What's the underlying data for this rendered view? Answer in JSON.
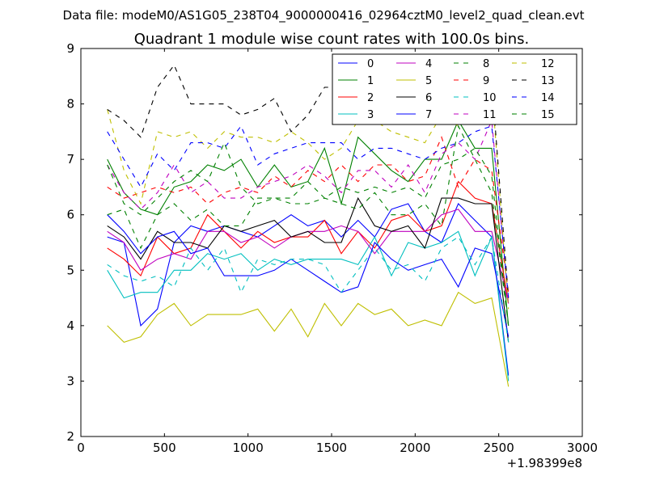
{
  "header": {
    "data_file": "Data file: modeM0/AS1G05_238T04_9000000416_02964cztM0_level2_quad_clean.evt"
  },
  "chart_data": {
    "type": "line",
    "title": "Quadrant 1 module wise count rates with 100.0s bins.",
    "xlabel": "",
    "ylabel": "",
    "x_offset_label": "+1.98399e8",
    "xlim": [
      0,
      3000
    ],
    "ylim": [
      2,
      9
    ],
    "xticks": [
      0,
      500,
      1000,
      1500,
      2000,
      2500,
      3000
    ],
    "yticks": [
      2,
      3,
      4,
      5,
      6,
      7,
      8,
      9
    ],
    "grid": false,
    "legend_position": "top-right",
    "x": [
      158,
      258,
      358,
      458,
      558,
      658,
      758,
      858,
      958,
      1058,
      1158,
      1258,
      1358,
      1458,
      1558,
      1658,
      1758,
      1858,
      1958,
      2058,
      2158,
      2258,
      2358,
      2458,
      2558
    ],
    "series": [
      {
        "name": "0",
        "color": "#0000ff",
        "style": "solid",
        "values": [
          5.6,
          5.5,
          4.0,
          4.3,
          5.5,
          5.8,
          5.7,
          5.8,
          5.7,
          5.6,
          5.8,
          6.0,
          5.8,
          5.9,
          5.6,
          5.9,
          5.6,
          6.1,
          6.2,
          5.7,
          5.5,
          6.2,
          5.9,
          5.6,
          3.1
        ]
      },
      {
        "name": "1",
        "color": "#008000",
        "style": "solid",
        "values": [
          7.0,
          6.4,
          6.1,
          6.0,
          6.5,
          6.6,
          6.9,
          6.8,
          7.0,
          6.5,
          6.9,
          6.5,
          6.6,
          7.2,
          6.2,
          7.4,
          7.1,
          6.8,
          6.6,
          7.0,
          7.0,
          7.7,
          7.2,
          7.2,
          4.0
        ]
      },
      {
        "name": "2",
        "color": "#ff0000",
        "style": "solid",
        "values": [
          5.4,
          5.2,
          4.9,
          5.6,
          5.3,
          5.4,
          6.0,
          5.7,
          5.4,
          5.7,
          5.5,
          5.6,
          5.6,
          5.9,
          5.3,
          5.7,
          5.4,
          5.9,
          6.0,
          5.7,
          5.8,
          6.6,
          6.3,
          6.2,
          4.4
        ]
      },
      {
        "name": "3",
        "color": "#00bfbf",
        "style": "solid",
        "values": [
          5.0,
          4.5,
          4.6,
          4.6,
          5.0,
          5.0,
          5.3,
          5.2,
          5.3,
          5.0,
          5.2,
          5.1,
          5.2,
          5.2,
          5.2,
          5.1,
          5.6,
          4.9,
          5.5,
          5.4,
          5.5,
          5.7,
          4.9,
          5.6,
          3.0
        ]
      },
      {
        "name": "4",
        "color": "#bf00bf",
        "style": "solid",
        "values": [
          5.7,
          5.5,
          5.0,
          5.2,
          5.3,
          5.2,
          5.7,
          5.7,
          5.5,
          5.6,
          5.4,
          5.6,
          5.7,
          5.7,
          5.8,
          5.7,
          5.3,
          5.7,
          5.7,
          5.7,
          6.0,
          6.1,
          5.7,
          5.7,
          4.4
        ]
      },
      {
        "name": "5",
        "color": "#bfbf00",
        "style": "solid",
        "values": [
          4.0,
          3.7,
          3.8,
          4.2,
          4.4,
          4.0,
          4.2,
          4.2,
          4.2,
          4.3,
          3.9,
          4.3,
          3.8,
          4.4,
          4.0,
          4.4,
          4.2,
          4.3,
          4.0,
          4.1,
          4.0,
          4.6,
          4.4,
          4.5,
          2.9
        ]
      },
      {
        "name": "6",
        "color": "#000000",
        "style": "solid",
        "values": [
          5.8,
          5.6,
          5.2,
          5.7,
          5.5,
          5.5,
          5.4,
          5.8,
          5.7,
          5.8,
          5.9,
          5.6,
          5.7,
          5.5,
          5.5,
          6.3,
          5.8,
          5.7,
          5.8,
          5.4,
          6.3,
          6.3,
          6.2,
          6.2,
          3.7
        ]
      },
      {
        "name": "7",
        "color": "#0000ff",
        "style": "solid",
        "values": [
          6.0,
          5.7,
          5.3,
          5.6,
          5.7,
          5.3,
          5.4,
          4.9,
          4.9,
          4.9,
          5.0,
          5.2,
          5.0,
          4.8,
          4.6,
          4.7,
          5.5,
          5.2,
          5.0,
          5.1,
          5.2,
          4.7,
          5.4,
          5.3,
          3.8
        ]
      },
      {
        "name": "8",
        "color": "#008000",
        "style": "dashed",
        "values": [
          6.0,
          6.1,
          5.4,
          6.0,
          6.2,
          5.9,
          6.1,
          5.8,
          5.8,
          6.3,
          6.3,
          6.2,
          6.2,
          6.3,
          6.2,
          6.1,
          6.4,
          6.0,
          6.0,
          6.2,
          5.8,
          7.6,
          7.0,
          6.4,
          4.0
        ]
      },
      {
        "name": "9",
        "color": "#ff0000",
        "style": "dashed",
        "values": [
          6.5,
          6.3,
          6.4,
          6.5,
          6.4,
          6.5,
          6.2,
          6.4,
          6.5,
          6.4,
          6.7,
          6.5,
          6.8,
          6.6,
          6.9,
          6.6,
          6.9,
          6.9,
          6.6,
          6.7,
          7.4,
          6.5,
          7.0,
          6.8,
          4.6
        ]
      },
      {
        "name": "10",
        "color": "#00bfbf",
        "style": "dashed",
        "values": [
          5.1,
          4.9,
          4.8,
          4.9,
          4.7,
          5.4,
          5.0,
          5.4,
          4.6,
          5.2,
          5.1,
          5.2,
          5.2,
          5.1,
          4.6,
          5.0,
          5.4,
          5.0,
          5.1,
          4.8,
          5.4,
          5.6,
          5.1,
          5.6,
          3.7
        ]
      },
      {
        "name": "11",
        "color": "#bf00bf",
        "style": "dashed",
        "values": [
          6.9,
          6.4,
          6.1,
          6.4,
          6.9,
          6.4,
          6.6,
          6.3,
          6.3,
          6.5,
          6.6,
          6.7,
          6.9,
          6.7,
          6.4,
          6.8,
          6.8,
          6.5,
          6.9,
          6.4,
          7.1,
          7.3,
          7.0,
          7.7,
          4.4
        ]
      },
      {
        "name": "12",
        "color": "#bfbf00",
        "style": "dashed",
        "values": [
          7.9,
          6.8,
          6.2,
          7.5,
          7.4,
          7.5,
          7.2,
          7.5,
          7.4,
          7.4,
          7.3,
          7.5,
          7.3,
          7.0,
          7.2,
          7.7,
          7.7,
          7.5,
          7.4,
          7.3,
          7.8,
          7.6,
          8.2,
          8.3,
          4.3
        ]
      },
      {
        "name": "13",
        "color": "#000000",
        "style": "dashed",
        "values": [
          7.9,
          7.7,
          7.4,
          8.3,
          8.7,
          8.0,
          8.0,
          8.0,
          7.8,
          7.9,
          8.1,
          7.5,
          7.8,
          8.3,
          8.3,
          8.0,
          7.7,
          8.0,
          8.0,
          7.9,
          8.6,
          8.3,
          8.1,
          8.4,
          4.5
        ]
      },
      {
        "name": "14",
        "color": "#0000ff",
        "style": "dashed",
        "values": [
          7.5,
          7.0,
          6.5,
          7.1,
          6.8,
          7.3,
          7.3,
          7.2,
          7.6,
          6.9,
          7.1,
          7.2,
          7.3,
          7.3,
          7.3,
          7.0,
          7.2,
          7.2,
          7.1,
          7.0,
          7.2,
          7.3,
          7.5,
          7.6,
          4.5
        ]
      },
      {
        "name": "15",
        "color": "#008000",
        "style": "dashed",
        "values": [
          6.9,
          6.2,
          6.0,
          6.3,
          6.6,
          6.8,
          6.6,
          7.3,
          6.5,
          6.2,
          6.3,
          6.3,
          6.6,
          6.3,
          6.5,
          6.4,
          6.5,
          6.4,
          6.5,
          6.3,
          6.9,
          7.0,
          7.2,
          6.7,
          4.0
        ]
      }
    ]
  }
}
